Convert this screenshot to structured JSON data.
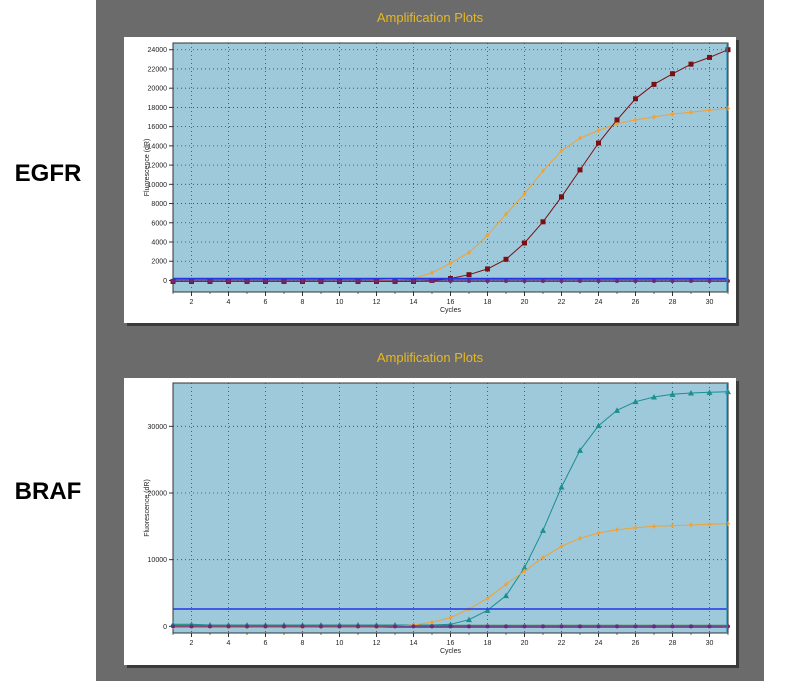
{
  "panel_labels": [
    "EGFR",
    "BRAF"
  ],
  "colors": {
    "frame": "#6b6b6b",
    "plot_bg": "#9ec9da",
    "title": "#e8b81e",
    "threshold": "#2236e8",
    "orange": "#f2a134",
    "darkred": "#7a0f14",
    "teal": "#1a8f8f",
    "purple": "#6b2a7f",
    "baseline": "#5a5a5a"
  },
  "chart_data": [
    {
      "type": "line",
      "title": "Amplification Plots",
      "xlabel": "Cycles",
      "ylabel": "Fluorescence (dR)",
      "xlim": [
        1,
        31
      ],
      "ylim": [
        -1200,
        24700
      ],
      "xticks": [
        2,
        4,
        6,
        8,
        10,
        12,
        14,
        16,
        18,
        20,
        22,
        24,
        26,
        28,
        30
      ],
      "yticks": [
        0,
        2000,
        4000,
        6000,
        8000,
        10000,
        12000,
        14000,
        16000,
        18000,
        20000,
        22000,
        24000
      ],
      "grid": true,
      "threshold": 200,
      "series": [
        {
          "color": "orange",
          "marker": "diamond",
          "x": [
            1,
            2,
            3,
            4,
            5,
            6,
            7,
            8,
            9,
            10,
            11,
            12,
            13,
            14,
            15,
            16,
            17,
            18,
            19,
            20,
            21,
            22,
            23,
            24,
            25,
            26,
            27,
            28,
            29,
            30,
            31
          ],
          "y": [
            -100,
            -100,
            -100,
            -100,
            -100,
            -100,
            -100,
            -100,
            -100,
            -100,
            -100,
            0,
            100,
            200,
            800,
            1800,
            2900,
            4700,
            6900,
            9000,
            11400,
            13500,
            14800,
            15600,
            16300,
            16700,
            17000,
            17300,
            17500,
            17700,
            17900
          ]
        },
        {
          "color": "darkred",
          "marker": "square",
          "x": [
            1,
            2,
            3,
            4,
            5,
            6,
            7,
            8,
            9,
            10,
            11,
            12,
            13,
            14,
            15,
            16,
            17,
            18,
            19,
            20,
            21,
            22,
            23,
            24,
            25,
            26,
            27,
            28,
            29,
            30,
            31
          ],
          "y": [
            -100,
            -100,
            -100,
            -100,
            -100,
            -100,
            -100,
            -100,
            -100,
            -100,
            -100,
            -100,
            -100,
            -100,
            0,
            200,
            600,
            1200,
            2200,
            3900,
            6100,
            8700,
            11500,
            14300,
            16700,
            18900,
            20400,
            21500,
            22500,
            23200,
            24000
          ]
        },
        {
          "color": "purple",
          "marker": "circle",
          "x": [
            1,
            2,
            3,
            4,
            5,
            6,
            7,
            8,
            9,
            10,
            11,
            12,
            13,
            14,
            15,
            16,
            17,
            18,
            19,
            20,
            21,
            22,
            23,
            24,
            25,
            26,
            27,
            28,
            29,
            30,
            31
          ],
          "y": [
            -50,
            -50,
            -50,
            -50,
            -50,
            -50,
            -50,
            -50,
            -50,
            -50,
            -50,
            -50,
            -50,
            -50,
            -50,
            -50,
            -50,
            -50,
            -50,
            -50,
            -50,
            -50,
            -50,
            -50,
            -50,
            -50,
            -50,
            -50,
            -50,
            -50,
            -50
          ]
        }
      ]
    },
    {
      "type": "line",
      "title": "Amplification Plots",
      "xlabel": "Cycles",
      "ylabel": "Fluorescence (dR)",
      "xlim": [
        1,
        31
      ],
      "ylim": [
        -1000,
        36500
      ],
      "xticks": [
        2,
        4,
        6,
        8,
        10,
        12,
        14,
        16,
        18,
        20,
        22,
        24,
        26,
        28,
        30
      ],
      "yticks": [
        0,
        10000,
        20000,
        30000
      ],
      "grid": true,
      "threshold": 2600,
      "series": [
        {
          "color": "teal",
          "marker": "triangle",
          "x": [
            1,
            2,
            3,
            4,
            5,
            6,
            7,
            8,
            9,
            10,
            11,
            12,
            13,
            14,
            15,
            16,
            17,
            18,
            19,
            20,
            21,
            22,
            23,
            24,
            25,
            26,
            27,
            28,
            29,
            30,
            31
          ],
          "y": [
            300,
            300,
            200,
            200,
            200,
            200,
            200,
            200,
            200,
            200,
            200,
            200,
            200,
            200,
            200,
            300,
            1000,
            2400,
            4600,
            8800,
            14400,
            20900,
            26400,
            30100,
            32400,
            33700,
            34400,
            34800,
            35000,
            35100,
            35200
          ]
        },
        {
          "color": "orange",
          "marker": "diamond",
          "x": [
            1,
            2,
            3,
            4,
            5,
            6,
            7,
            8,
            9,
            10,
            11,
            12,
            13,
            14,
            15,
            16,
            17,
            18,
            19,
            20,
            21,
            22,
            23,
            24,
            25,
            26,
            27,
            28,
            29,
            30,
            31
          ],
          "y": [
            -100,
            -100,
            -100,
            -100,
            -100,
            -100,
            -100,
            -100,
            -100,
            -100,
            -100,
            -100,
            0,
            200,
            600,
            1300,
            2600,
            4200,
            6300,
            8300,
            10300,
            12000,
            13200,
            14000,
            14500,
            14800,
            15000,
            15100,
            15200,
            15300,
            15400
          ]
        },
        {
          "color": "purple",
          "marker": "circle",
          "x": [
            1,
            2,
            3,
            4,
            5,
            6,
            7,
            8,
            9,
            10,
            11,
            12,
            13,
            14,
            15,
            16,
            17,
            18,
            19,
            20,
            21,
            22,
            23,
            24,
            25,
            26,
            27,
            28,
            29,
            30,
            31
          ],
          "y": [
            0,
            0,
            0,
            0,
            0,
            0,
            0,
            0,
            0,
            0,
            0,
            0,
            0,
            0,
            0,
            0,
            0,
            0,
            0,
            0,
            0,
            0,
            0,
            0,
            0,
            0,
            0,
            0,
            0,
            0,
            0
          ]
        }
      ]
    }
  ]
}
